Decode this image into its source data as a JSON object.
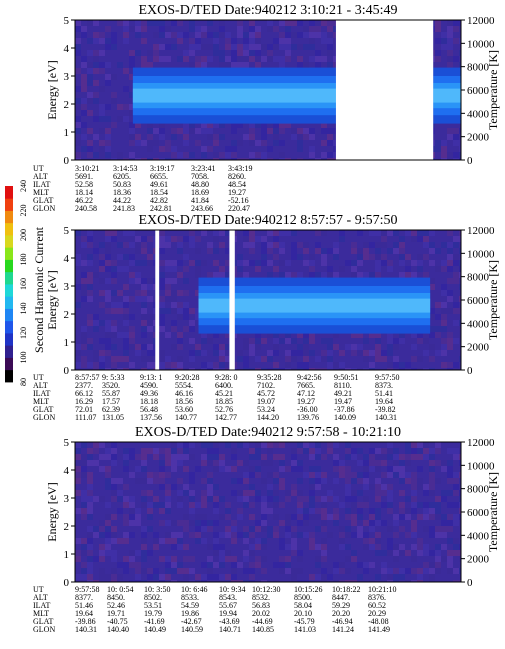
{
  "colorbar": {
    "label": "Second Harmonic Current",
    "ticks": [
      "80",
      "100",
      "120",
      "140",
      "160",
      "180",
      "200",
      "220",
      "240"
    ]
  },
  "chart_data": [
    {
      "type": "heatmap",
      "title": "EXOS-D/TED   Date:940212   3:10:21 - 3:45:49",
      "ylabel": "Energy [eV]",
      "ylabel_right": "Temperature [K]",
      "ylim": [
        0,
        5
      ],
      "yticks": [
        "0",
        "1",
        "2",
        "3",
        "4",
        "5"
      ],
      "ylim_right": [
        0,
        12000
      ],
      "yticks_right": [
        "0",
        "2000",
        "4000",
        "6000",
        "8000",
        "10000",
        "12000"
      ],
      "data_gaps": [
        [
          0.676,
          0.928
        ]
      ],
      "bright_band": {
        "energy_center_eV": 2.3,
        "x_extent": [
          [
            0.15,
            0.676
          ],
          [
            0.928,
            1.0
          ]
        ]
      },
      "table_rows": [
        "UT",
        "ALT",
        "ILAT",
        "MLT",
        "GLAT",
        "GLON"
      ],
      "table": [
        {
          "UT": "3:10:21",
          "ALT": "5691.",
          "ILAT": "52.58",
          "MLT": "18.14",
          "GLAT": "46.22",
          "GLON": "240.58"
        },
        {
          "UT": "3:14:53",
          "ALT": "6205.",
          "ILAT": "50.83",
          "MLT": "18.36",
          "GLAT": "44.22",
          "GLON": "241.83"
        },
        {
          "UT": "3:19:17",
          "ALT": "6655.",
          "ILAT": "49.61",
          "MLT": "18.54",
          "GLAT": "42.82",
          "GLON": "242.81"
        },
        {
          "UT": "3:23:41",
          "ALT": "7058.",
          "ILAT": "48.80",
          "MLT": "18.69",
          "GLAT": "41.84",
          "GLON": "243.66"
        },
        {
          "UT": "3:43:19",
          "ALT": "8260.",
          "ILAT": "48.54",
          "MLT": "19.27",
          "GLAT": "-52.16",
          "GLON": "220.47"
        }
      ]
    },
    {
      "type": "heatmap",
      "title": "EXOS-D/TED   Date:940212   8:57:57 - 9:57:50",
      "ylabel": "Energy [eV]",
      "ylabel_right": "Temperature [K]",
      "ylim": [
        0,
        5
      ],
      "yticks": [
        "0",
        "1",
        "2",
        "3",
        "4",
        "5"
      ],
      "ylim_right": [
        0,
        12000
      ],
      "yticks_right": [
        "0",
        "2000",
        "4000",
        "6000",
        "8000",
        "10000",
        "12000"
      ],
      "data_gaps": [
        [
          0.208,
          0.218
        ],
        [
          0.4,
          0.414
        ]
      ],
      "bright_band": {
        "energy_center_eV": 2.3,
        "x_extent": [
          [
            0.32,
            0.4
          ],
          [
            0.414,
            0.92
          ]
        ]
      },
      "table_rows": [
        "UT",
        "ALT",
        "ILAT",
        "MLT",
        "GLAT",
        "GLON"
      ],
      "table": [
        {
          "UT": "8:57:57",
          "ALT": "2377.",
          "ILAT": "66.12",
          "MLT": "16.29",
          "GLAT": "72.01",
          "GLON": "111.07"
        },
        {
          "UT": "9: 5:33",
          "ALT": "3520.",
          "ILAT": "55.87",
          "MLT": "17.57",
          "GLAT": "62.39",
          "GLON": "131.05"
        },
        {
          "UT": "9:13: 1",
          "ALT": "4590.",
          "ILAT": "49.36",
          "MLT": "18.18",
          "GLAT": "56.48",
          "GLON": "137.56"
        },
        {
          "UT": "9:20:28",
          "ALT": "5554.",
          "ILAT": "46.16",
          "MLT": "18.56",
          "GLAT": "53.60",
          "GLON": "140.77"
        },
        {
          "UT": "9:28: 0",
          "ALT": "6400.",
          "ILAT": "45.21",
          "MLT": "18.85",
          "GLAT": "52.76",
          "GLON": "142.77"
        },
        {
          "UT": "9:35:28",
          "ALT": "7102.",
          "ILAT": "45.72",
          "MLT": "19.07",
          "GLAT": "53.24",
          "GLON": "144.20"
        },
        {
          "UT": "9:42:56",
          "ALT": "7665.",
          "ILAT": "47.12",
          "MLT": "19.27",
          "GLAT": "-36.00",
          "GLON": "139.76"
        },
        {
          "UT": "9:50:51",
          "ALT": "8110.",
          "ILAT": "49.21",
          "MLT": "19.47",
          "GLAT": "-37.86",
          "GLON": "140.09"
        },
        {
          "UT": "9:57:50",
          "ALT": "8373.",
          "ILAT": "51.41",
          "MLT": "19.64",
          "GLAT": "-39.82",
          "GLON": "140.31"
        }
      ]
    },
    {
      "type": "heatmap",
      "title": "EXOS-D/TED   Date:940212   9:57:58 - 10:21:10",
      "ylabel": "Energy [eV]",
      "ylabel_right": "Temperature [K]",
      "ylim": [
        0,
        5
      ],
      "yticks": [
        "0",
        "1",
        "2",
        "3",
        "4",
        "5"
      ],
      "ylim_right": [
        0,
        12000
      ],
      "yticks_right": [
        "0",
        "2000",
        "4000",
        "6000",
        "8000",
        "10000",
        "12000"
      ],
      "data_gaps": [],
      "bright_band": null,
      "table_rows": [
        "UT",
        "ALT",
        "ILAT",
        "MLT",
        "GLAT",
        "GLON"
      ],
      "table": [
        {
          "UT": "9:57:58",
          "ALT": "8377.",
          "ILAT": "51.46",
          "MLT": "19.64",
          "GLAT": "-39.86",
          "GLON": "140.31"
        },
        {
          "UT": "10: 0:54",
          "ALT": "8450.",
          "ILAT": "52.46",
          "MLT": "19.71",
          "GLAT": "-40.75",
          "GLON": "140.40"
        },
        {
          "UT": "10: 3:50",
          "ALT": "8502.",
          "ILAT": "53.51",
          "MLT": "19.79",
          "GLAT": "-41.69",
          "GLON": "140.49"
        },
        {
          "UT": "10: 6:46",
          "ALT": "8533.",
          "ILAT": "54.59",
          "MLT": "19.86",
          "GLAT": "-42.67",
          "GLON": "140.59"
        },
        {
          "UT": "10: 9:34",
          "ALT": "8543.",
          "ILAT": "55.67",
          "MLT": "19.94",
          "GLAT": "-43.69",
          "GLON": "140.71"
        },
        {
          "UT": "10:12:30",
          "ALT": "8532.",
          "ILAT": "56.83",
          "MLT": "20.02",
          "GLAT": "-44.69",
          "GLON": "140.85"
        },
        {
          "UT": "10:15:26",
          "ALT": "8500.",
          "ILAT": "58.04",
          "MLT": "20.10",
          "GLAT": "-45.79",
          "GLON": "141.03"
        },
        {
          "UT": "10:18:22",
          "ALT": "8447.",
          "ILAT": "59.29",
          "MLT": "20.20",
          "GLAT": "-46.94",
          "GLON": "141.24"
        },
        {
          "UT": "10:21:10",
          "ALT": "8376.",
          "ILAT": "60.52",
          "MLT": "20.29",
          "GLAT": "-48.08",
          "GLON": "141.49"
        }
      ]
    }
  ]
}
